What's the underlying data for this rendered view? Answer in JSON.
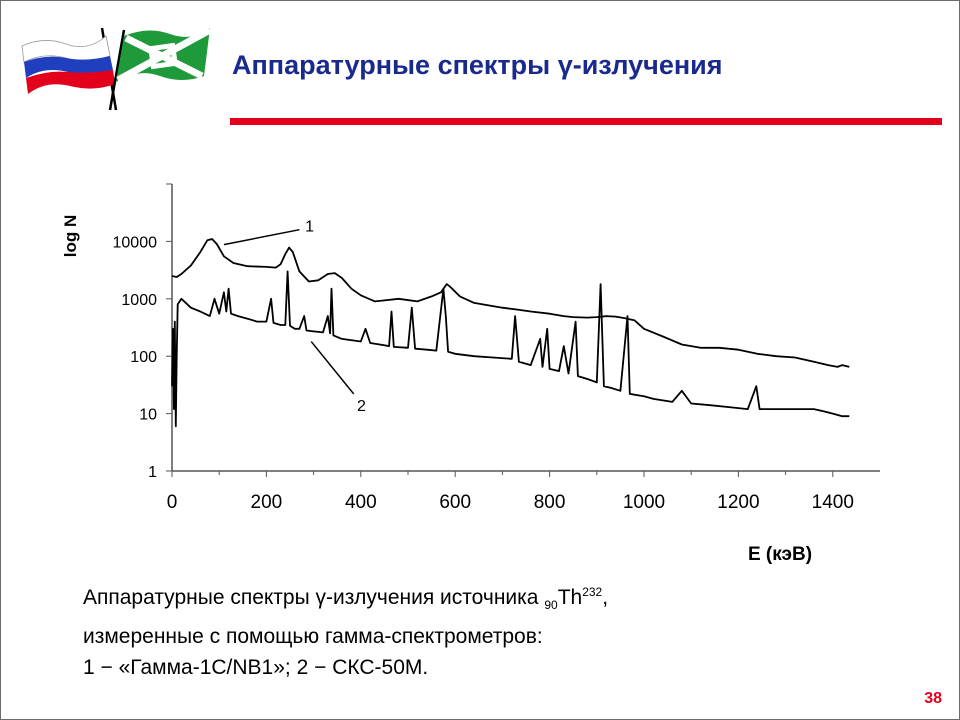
{
  "slide": {
    "title": "Аппаратурные спектры γ-излучения",
    "page_number": "38",
    "colors": {
      "title": "#1a2a8c",
      "rule": "#e3001b",
      "page_number": "#e3001b"
    },
    "flags": [
      "russia-flag-icon",
      "green-white-flag-icon"
    ]
  },
  "caption": {
    "prefix": "Аппаратурные спектры γ-излучения источника ",
    "subscript": "90",
    "element": "Th",
    "superscript": "232",
    "suffix": ",",
    "line2": "измеренные с помощью гамма-спектрометров:",
    "line3": "1 − «Гамма-1С/NB1»; 2 − СКС-50М."
  },
  "chart_data": {
    "type": "line",
    "xlabel": "E (кэВ)",
    "ylabel": "log N",
    "xlim": [
      0,
      1500
    ],
    "ylim": [
      1,
      100000
    ],
    "yscale": "log",
    "x_ticks": [
      "0",
      "200",
      "400",
      "600",
      "800",
      "1000",
      "1200",
      "1400"
    ],
    "y_ticks": [
      "1",
      "10",
      "100",
      "1000",
      "10000"
    ],
    "grid": false,
    "annotations": [
      "1",
      "2"
    ],
    "series": [
      {
        "label": "1",
        "color": "#000000",
        "points": [
          [
            0,
            2500
          ],
          [
            10,
            2400
          ],
          [
            20,
            2700
          ],
          [
            40,
            3800
          ],
          [
            60,
            6500
          ],
          [
            75,
            10500
          ],
          [
            85,
            11000
          ],
          [
            95,
            9000
          ],
          [
            110,
            5500
          ],
          [
            130,
            4200
          ],
          [
            160,
            3700
          ],
          [
            200,
            3600
          ],
          [
            220,
            3500
          ],
          [
            230,
            4000
          ],
          [
            240,
            6000
          ],
          [
            248,
            7800
          ],
          [
            256,
            6500
          ],
          [
            270,
            3000
          ],
          [
            290,
            2000
          ],
          [
            310,
            2100
          ],
          [
            330,
            2700
          ],
          [
            345,
            2800
          ],
          [
            360,
            2300
          ],
          [
            380,
            1500
          ],
          [
            400,
            1150
          ],
          [
            430,
            900
          ],
          [
            480,
            1000
          ],
          [
            520,
            900
          ],
          [
            550,
            1100
          ],
          [
            570,
            1300
          ],
          [
            582,
            1800
          ],
          [
            590,
            1600
          ],
          [
            610,
            1100
          ],
          [
            640,
            850
          ],
          [
            700,
            700
          ],
          [
            730,
            650
          ],
          [
            760,
            600
          ],
          [
            800,
            550
          ],
          [
            830,
            500
          ],
          [
            850,
            480
          ],
          [
            880,
            470
          ],
          [
            900,
            480
          ],
          [
            920,
            500
          ],
          [
            940,
            490
          ],
          [
            960,
            460
          ],
          [
            980,
            420
          ],
          [
            1000,
            300
          ],
          [
            1040,
            220
          ],
          [
            1080,
            160
          ],
          [
            1120,
            140
          ],
          [
            1160,
            140
          ],
          [
            1200,
            130
          ],
          [
            1240,
            110
          ],
          [
            1280,
            100
          ],
          [
            1320,
            95
          ],
          [
            1360,
            80
          ],
          [
            1390,
            70
          ],
          [
            1410,
            65
          ],
          [
            1420,
            70
          ],
          [
            1435,
            65
          ]
        ]
      },
      {
        "label": "2",
        "color": "#000000",
        "points": [
          [
            0,
            30
          ],
          [
            2,
            300
          ],
          [
            4,
            12
          ],
          [
            6,
            400
          ],
          [
            8,
            6
          ],
          [
            10,
            100
          ],
          [
            12,
            800
          ],
          [
            20,
            1000
          ],
          [
            40,
            700
          ],
          [
            60,
            600
          ],
          [
            80,
            500
          ],
          [
            90,
            1000
          ],
          [
            100,
            550
          ],
          [
            110,
            1300
          ],
          [
            115,
            600
          ],
          [
            120,
            1500
          ],
          [
            125,
            550
          ],
          [
            140,
            500
          ],
          [
            160,
            450
          ],
          [
            180,
            400
          ],
          [
            200,
            400
          ],
          [
            210,
            1000
          ],
          [
            215,
            380
          ],
          [
            230,
            350
          ],
          [
            240,
            350
          ],
          [
            245,
            3000
          ],
          [
            250,
            340
          ],
          [
            260,
            300
          ],
          [
            270,
            300
          ],
          [
            280,
            500
          ],
          [
            285,
            280
          ],
          [
            300,
            270
          ],
          [
            320,
            260
          ],
          [
            330,
            500
          ],
          [
            335,
            250
          ],
          [
            338,
            1500
          ],
          [
            342,
            230
          ],
          [
            360,
            200
          ],
          [
            400,
            180
          ],
          [
            410,
            300
          ],
          [
            420,
            170
          ],
          [
            440,
            160
          ],
          [
            460,
            150
          ],
          [
            465,
            600
          ],
          [
            470,
            145
          ],
          [
            500,
            140
          ],
          [
            508,
            700
          ],
          [
            515,
            135
          ],
          [
            540,
            130
          ],
          [
            560,
            125
          ],
          [
            575,
            1500
          ],
          [
            580,
            500
          ],
          [
            585,
            120
          ],
          [
            600,
            110
          ],
          [
            640,
            100
          ],
          [
            680,
            95
          ],
          [
            720,
            90
          ],
          [
            727,
            500
          ],
          [
            735,
            80
          ],
          [
            760,
            70
          ],
          [
            780,
            200
          ],
          [
            785,
            65
          ],
          [
            795,
            300
          ],
          [
            800,
            60
          ],
          [
            820,
            55
          ],
          [
            830,
            150
          ],
          [
            840,
            50
          ],
          [
            855,
            400
          ],
          [
            860,
            45
          ],
          [
            880,
            40
          ],
          [
            900,
            35
          ],
          [
            908,
            1800
          ],
          [
            915,
            30
          ],
          [
            930,
            28
          ],
          [
            950,
            25
          ],
          [
            965,
            500
          ],
          [
            970,
            22
          ],
          [
            1000,
            20
          ],
          [
            1020,
            18
          ],
          [
            1060,
            16
          ],
          [
            1080,
            25
          ],
          [
            1100,
            15
          ],
          [
            1140,
            14
          ],
          [
            1180,
            13
          ],
          [
            1220,
            12
          ],
          [
            1238,
            30
          ],
          [
            1245,
            12
          ],
          [
            1280,
            12
          ],
          [
            1320,
            12
          ],
          [
            1360,
            12
          ],
          [
            1380,
            11
          ],
          [
            1400,
            10
          ],
          [
            1420,
            9
          ],
          [
            1435,
            9
          ]
        ]
      }
    ]
  }
}
